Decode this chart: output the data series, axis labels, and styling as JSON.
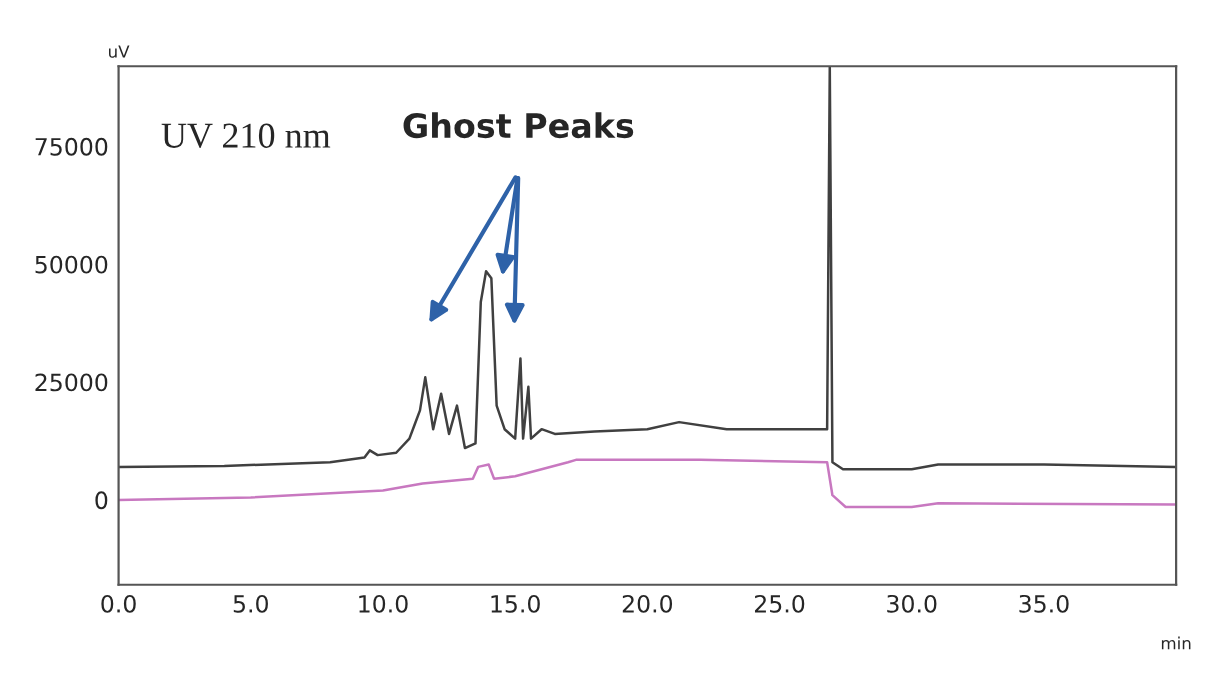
{
  "chart_data": {
    "type": "line",
    "xlabel": "min",
    "ylabel": "uV",
    "xlim": [
      0,
      40
    ],
    "ylim": [
      -18000,
      92000
    ],
    "xticks": [
      {
        "value": 0,
        "label": "0.0"
      },
      {
        "value": 5,
        "label": "5.0"
      },
      {
        "value": 10,
        "label": "10.0"
      },
      {
        "value": 15,
        "label": "15.0"
      },
      {
        "value": 20,
        "label": "20.0"
      },
      {
        "value": 25,
        "label": "25.0"
      },
      {
        "value": 30,
        "label": "30.0"
      },
      {
        "value": 35,
        "label": "35.0"
      }
    ],
    "yticks": [
      0,
      25000,
      50000,
      75000
    ],
    "grid": false,
    "legend": false,
    "marker": "none",
    "line_style": "solid",
    "series": [
      {
        "color": "#404040",
        "x": [
          0,
          4,
          8,
          9.3,
          9.5,
          9.8,
          10.5,
          11.0,
          11.2,
          11.4,
          11.6,
          11.9,
          12.2,
          12.5,
          12.8,
          13.1,
          13.5,
          13.7,
          13.9,
          14.1,
          14.3,
          14.6,
          15.0,
          15.2,
          15.3,
          15.5,
          15.6,
          16.0,
          16.5,
          18,
          20,
          21.2,
          23,
          25,
          26.8,
          26.9,
          27.0,
          27.4,
          30,
          31,
          35,
          40
        ],
        "values": [
          7000,
          7200,
          8000,
          9000,
          10500,
          9500,
          10000,
          13000,
          16000,
          19000,
          26000,
          15000,
          22500,
          14000,
          20000,
          11000,
          12000,
          42000,
          48500,
          47000,
          20000,
          15000,
          13000,
          30000,
          13000,
          24000,
          13000,
          15000,
          14000,
          14500,
          15000,
          16500,
          15000,
          15000,
          15000,
          92000,
          8000,
          6500,
          6500,
          7500,
          7500,
          7000
        ]
      },
      {
        "color": "#c878c0",
        "x": [
          0,
          5,
          10,
          11.5,
          13.4,
          13.6,
          14.0,
          14.2,
          15,
          17,
          17.3,
          22,
          26.8,
          27.0,
          27.5,
          30,
          31,
          40
        ],
        "values": [
          0,
          500,
          2000,
          3500,
          4500,
          7000,
          7500,
          4500,
          5000,
          8000,
          8500,
          8500,
          8000,
          1000,
          -1500,
          -1500,
          -700,
          -1000
        ]
      }
    ],
    "annotations": [
      "UV 210 nm",
      "Ghost Peaks"
    ]
  }
}
